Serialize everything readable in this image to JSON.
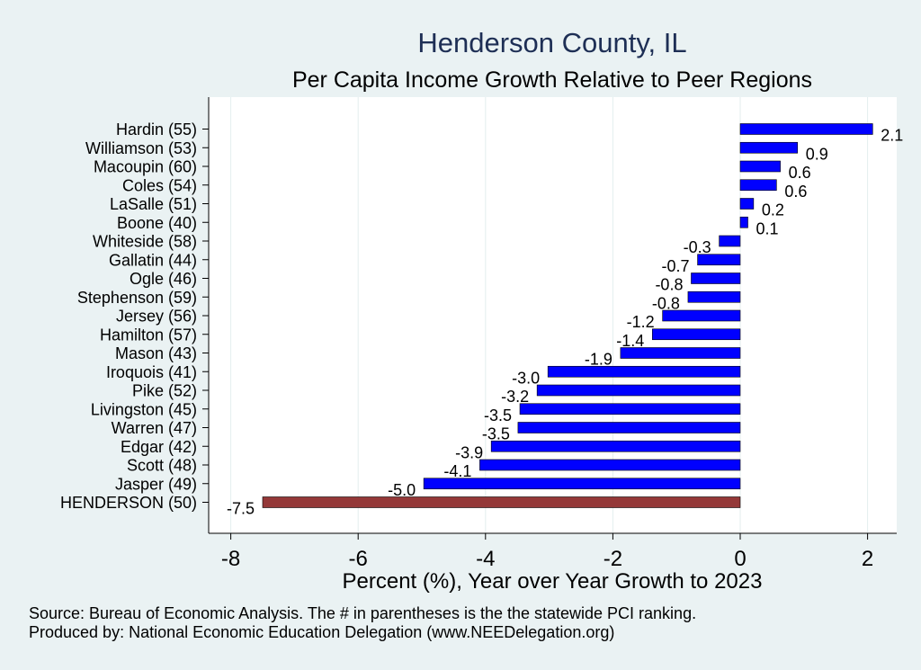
{
  "colors": {
    "background": "#eaf2f3",
    "plot_background": "#ffffff",
    "bar": "#0000ff",
    "highlight_bar": "#943838",
    "title": "#1e2f55",
    "grid": "#e3eeee"
  },
  "chart_data": {
    "type": "bar",
    "orientation": "horizontal",
    "title": "Henderson County, IL",
    "subtitle": "Per Capita Income Growth Relative to Peer Regions",
    "xlabel": "Percent (%), Year over Year Growth to 2023",
    "ylabel": "",
    "xlim": [
      -8.5,
      2.45
    ],
    "xticks": [
      -8,
      -6,
      -4,
      -2,
      0,
      2
    ],
    "grid": true,
    "highlight": "HENDERSON (50)",
    "categories": [
      "Hardin (55)",
      "Williamson (53)",
      "Macoupin (60)",
      "Coles (54)",
      "LaSalle (51)",
      "Boone (40)",
      "Whiteside (58)",
      "Gallatin (44)",
      "Ogle (46)",
      "Stephenson (59)",
      "Jersey (56)",
      "Hamilton (57)",
      "Mason (43)",
      "Iroquois (41)",
      "Pike (52)",
      "Livingston (45)",
      "Warren (47)",
      "Edgar (42)",
      "Scott (48)",
      "Jasper (49)",
      "HENDERSON (50)"
    ],
    "values": [
      2.08,
      0.9,
      0.63,
      0.57,
      0.21,
      0.12,
      -0.33,
      -0.67,
      -0.77,
      -0.82,
      -1.22,
      -1.38,
      -1.88,
      -3.02,
      -3.19,
      -3.46,
      -3.49,
      -3.91,
      -4.09,
      -4.97,
      -7.5
    ],
    "labels": [
      "2.1",
      "0.9",
      "0.6",
      "0.6",
      "0.2",
      "0.1",
      "-0.3",
      "-0.7",
      "-0.8",
      "-0.8",
      "-1.2",
      "-1.4",
      "-1.9",
      "-3.0",
      "-3.2",
      "-3.5",
      "-3.5",
      "-3.9",
      "-4.1",
      "-5.0",
      "-7.5"
    ]
  },
  "footnotes": {
    "source": "Source: Bureau of Economic Analysis. The # in parentheses is the the statewide PCI ranking.",
    "producer": "Produced by: National Economic Education Delegation (www.NEEDelegation.org)"
  }
}
